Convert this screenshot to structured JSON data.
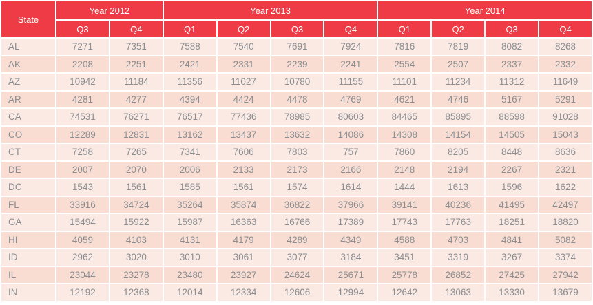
{
  "chart_data": {
    "type": "table",
    "state_column_header": "State",
    "year_groups": [
      {
        "label": "Year 2012",
        "quarters": [
          "Q3",
          "Q4"
        ]
      },
      {
        "label": "Year 2013",
        "quarters": [
          "Q1",
          "Q2",
          "Q3",
          "Q4"
        ]
      },
      {
        "label": "Year 2014",
        "quarters": [
          "Q1",
          "Q2",
          "Q3",
          "Q4"
        ]
      }
    ],
    "rows": [
      {
        "state": "AL",
        "values": [
          7271,
          7351,
          7588,
          7540,
          7691,
          7924,
          7816,
          7819,
          8082,
          8268
        ]
      },
      {
        "state": "AK",
        "values": [
          2208,
          2251,
          2421,
          2331,
          2239,
          2241,
          2554,
          2507,
          2337,
          2332
        ]
      },
      {
        "state": "AZ",
        "values": [
          10942,
          11184,
          11356,
          11027,
          10780,
          11155,
          11101,
          11234,
          11312,
          11649
        ]
      },
      {
        "state": "AR",
        "values": [
          4281,
          4277,
          4394,
          4424,
          4478,
          4769,
          4621,
          4746,
          5167,
          5291
        ]
      },
      {
        "state": "CA",
        "values": [
          74531,
          76271,
          76517,
          77436,
          78985,
          80603,
          84465,
          85895,
          88598,
          91028
        ]
      },
      {
        "state": "CO",
        "values": [
          12289,
          12831,
          13162,
          13437,
          13632,
          14086,
          14308,
          14154,
          14505,
          15043
        ]
      },
      {
        "state": "CT",
        "values": [
          7258,
          7265,
          7341,
          7606,
          7803,
          757,
          7860,
          8205,
          8448,
          8636
        ]
      },
      {
        "state": "DE",
        "values": [
          2007,
          2070,
          2006,
          2133,
          2173,
          2166,
          2148,
          2194,
          2267,
          2321
        ]
      },
      {
        "state": "DC",
        "values": [
          1543,
          1561,
          1585,
          1561,
          1574,
          1614,
          1444,
          1613,
          1596,
          1622
        ]
      },
      {
        "state": "FL",
        "values": [
          33916,
          34724,
          35264,
          35874,
          36822,
          37966,
          39141,
          40236,
          41495,
          42497
        ]
      },
      {
        "state": "GA",
        "values": [
          15494,
          15922,
          15987,
          16363,
          16766,
          17389,
          17743,
          17763,
          18251,
          18820
        ]
      },
      {
        "state": "HI",
        "values": [
          4059,
          4103,
          4131,
          4179,
          4289,
          4349,
          4588,
          4703,
          4841,
          5082
        ]
      },
      {
        "state": "ID",
        "values": [
          2962,
          3020,
          3010,
          3061,
          3077,
          3184,
          3451,
          3319,
          3267,
          3374
        ]
      },
      {
        "state": "IL",
        "values": [
          23044,
          23278,
          23480,
          23927,
          24624,
          25671,
          25778,
          26852,
          27425,
          27942
        ]
      },
      {
        "state": "IN",
        "values": [
          12192,
          12368,
          12014,
          12334,
          12606,
          12994,
          12642,
          13063,
          13330,
          13679
        ]
      }
    ]
  },
  "colors": {
    "header_bg": "#EE3B45",
    "header_text": "#FFFFFF",
    "row_light": "#FBEAE3",
    "row_dark": "#F9DDD2",
    "cell_text": "#8A8E92"
  }
}
